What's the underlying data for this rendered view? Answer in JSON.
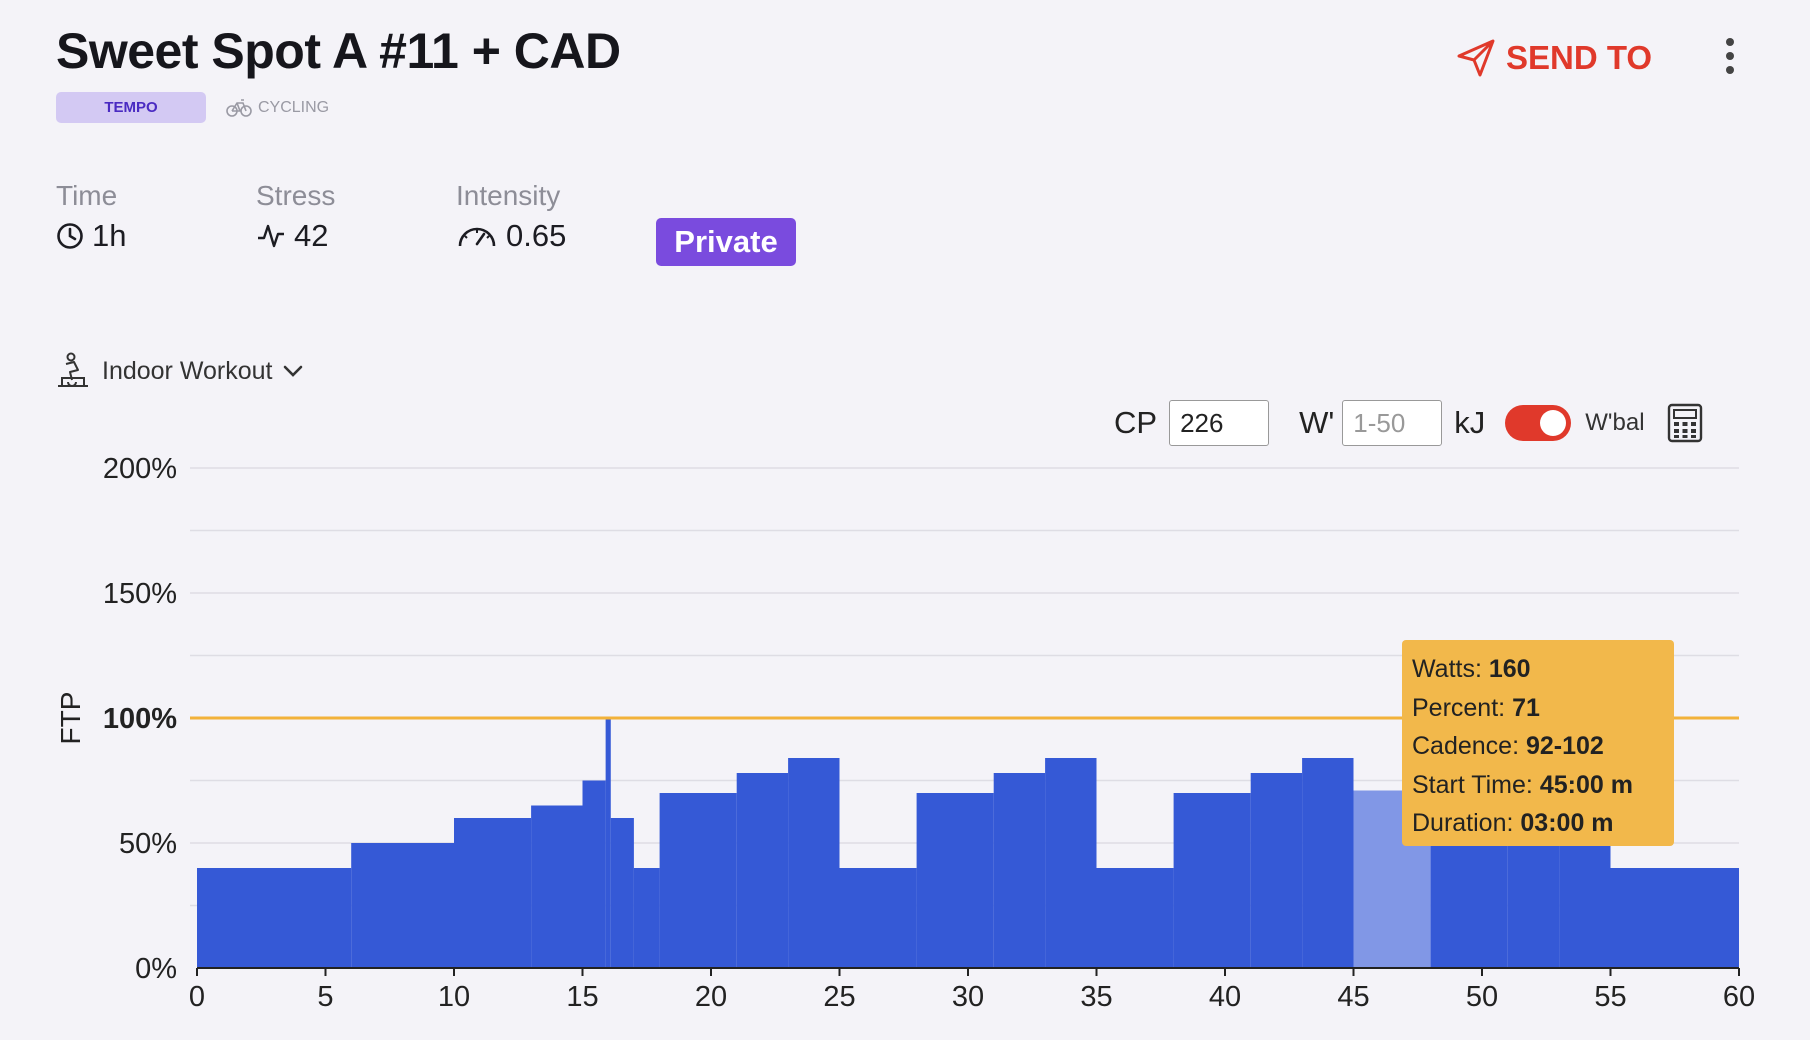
{
  "workout": {
    "title": "Sweet Spot A #11 + CAD",
    "tag": "TEMPO",
    "sport": "CYCLING",
    "sport_icon": "bike-icon"
  },
  "actions": {
    "send_to_label": "SEND TO",
    "send_icon": "paper-plane-icon",
    "more_icon": "kebab-menu-icon"
  },
  "metrics": {
    "time": {
      "label": "Time",
      "value": "1h",
      "icon": "clock-icon"
    },
    "stress": {
      "label": "Stress",
      "value": "42",
      "icon": "pulse-icon"
    },
    "intensity": {
      "label": "Intensity",
      "value": "0.65",
      "icon": "speedometer-icon"
    },
    "visibility": "Private"
  },
  "mode": {
    "label": "Indoor Workout",
    "icon": "indoor-cyclist-icon"
  },
  "controls": {
    "cp_label": "CP",
    "cp_value": "226",
    "w_label": "W'",
    "w_placeholder": "1-50",
    "w_unit": "kJ",
    "wbal_label": "W'bal",
    "wbal_on": true,
    "calculator_icon": "calculator-icon"
  },
  "colors": {
    "bar": "#3559d6",
    "bar_highlight": "#8197e6",
    "ftp_line": "#f2b23a",
    "accent": "#e0392b",
    "private_badge": "#7a4bde",
    "tag_bg": "#d3c9f3"
  },
  "chart_data": {
    "type": "area",
    "ylabel": "FTP",
    "xlim": [
      0,
      60
    ],
    "ylim": [
      0,
      200
    ],
    "xticks": [
      "0",
      "5",
      "10",
      "15",
      "20",
      "25",
      "30",
      "35",
      "40",
      "45",
      "50",
      "55",
      "60"
    ],
    "yticks": [
      {
        "value": 0,
        "label": "0%"
      },
      {
        "value": 50,
        "label": "50%"
      },
      {
        "value": 100,
        "label": "100%"
      },
      {
        "value": 150,
        "label": "150%"
      },
      {
        "value": 200,
        "label": "200%"
      }
    ],
    "reference_line": {
      "value": 100
    },
    "segments": [
      {
        "start": 0,
        "end": 6,
        "percent": 40
      },
      {
        "start": 6,
        "end": 10,
        "percent": 50
      },
      {
        "start": 10,
        "end": 13,
        "percent": 60
      },
      {
        "start": 13,
        "end": 15,
        "percent": 65
      },
      {
        "start": 15,
        "end": 15.9,
        "percent": 75
      },
      {
        "start": 15.9,
        "end": 16.1,
        "percent": 100
      },
      {
        "start": 16.1,
        "end": 17,
        "percent": 60
      },
      {
        "start": 17,
        "end": 18,
        "percent": 40
      },
      {
        "start": 18,
        "end": 21,
        "percent": 70
      },
      {
        "start": 21,
        "end": 23,
        "percent": 78
      },
      {
        "start": 23,
        "end": 25,
        "percent": 84
      },
      {
        "start": 25,
        "end": 28,
        "percent": 40
      },
      {
        "start": 28,
        "end": 31,
        "percent": 70
      },
      {
        "start": 31,
        "end": 33,
        "percent": 78
      },
      {
        "start": 33,
        "end": 35,
        "percent": 84
      },
      {
        "start": 35,
        "end": 38,
        "percent": 40
      },
      {
        "start": 38,
        "end": 41,
        "percent": 70
      },
      {
        "start": 41,
        "end": 43,
        "percent": 78
      },
      {
        "start": 43,
        "end": 45,
        "percent": 84
      },
      {
        "start": 45,
        "end": 48,
        "percent": 71,
        "highlight": true
      },
      {
        "start": 48,
        "end": 51,
        "percent": 70
      },
      {
        "start": 51,
        "end": 53,
        "percent": 78
      },
      {
        "start": 53,
        "end": 55,
        "percent": 84
      },
      {
        "start": 55,
        "end": 60,
        "percent": 40
      }
    ],
    "tooltip": {
      "watts_label": "Watts:",
      "watts": "160",
      "percent_label": "Percent:",
      "percent": "71",
      "cadence_label": "Cadence:",
      "cadence": "92-102",
      "start_label": "Start Time:",
      "start": "45:00 m",
      "duration_label": "Duration:",
      "duration": "03:00 m"
    }
  }
}
